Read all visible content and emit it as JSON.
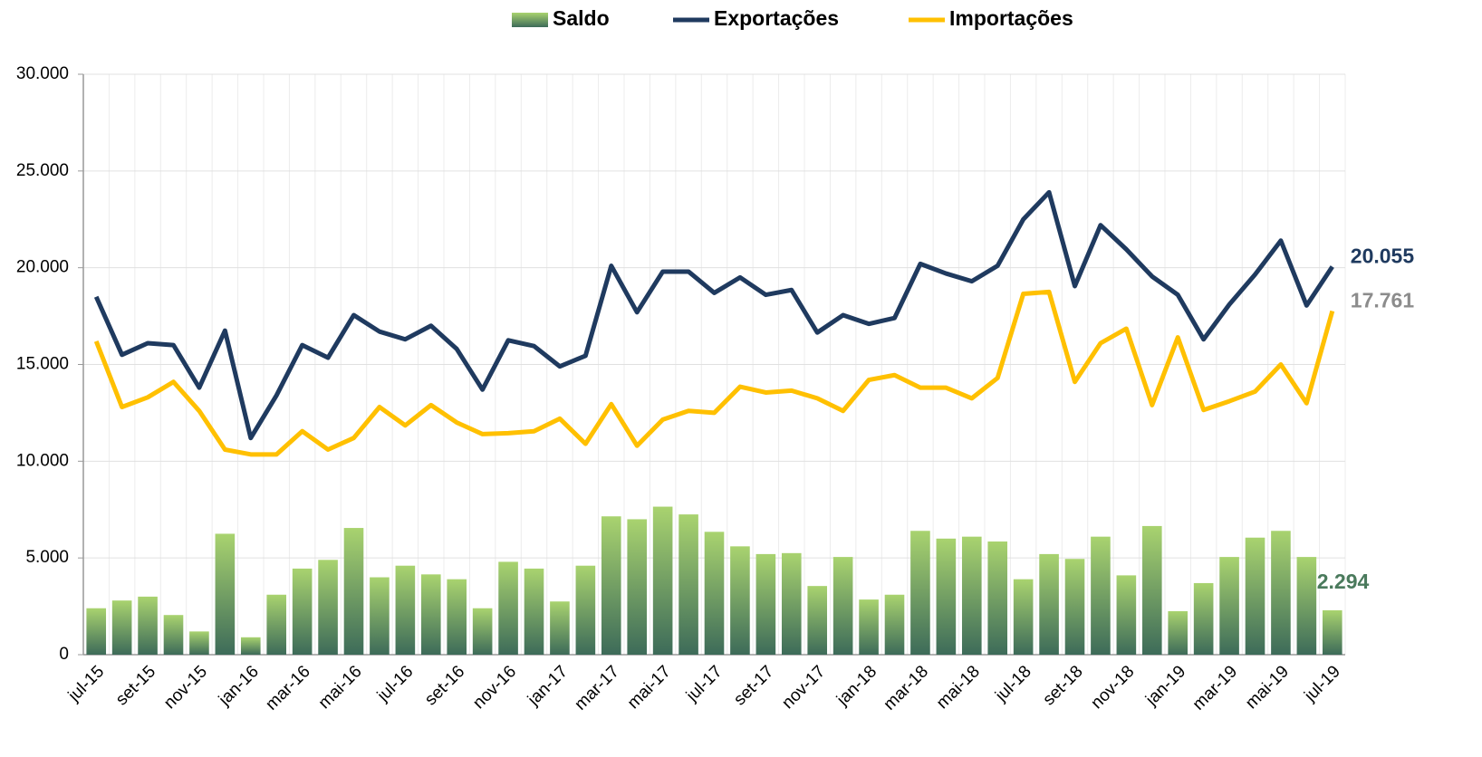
{
  "chart_data": {
    "type": "combo",
    "categories": [
      "jul-15",
      null,
      "set-15",
      null,
      "nov-15",
      null,
      "jan-16",
      null,
      "mar-16",
      null,
      "mai-16",
      null,
      "jul-16",
      null,
      "set-16",
      null,
      "nov-16",
      null,
      "jan-17",
      null,
      "mar-17",
      null,
      "mai-17",
      null,
      "jul-17",
      null,
      "set-17",
      null,
      "nov-17",
      null,
      "jan-18",
      null,
      "mar-18",
      null,
      "mai-18",
      null,
      "jul-18",
      null,
      "set-18",
      null,
      "nov-18",
      null,
      "jan-19",
      null,
      "mar-19",
      null,
      "mai-19",
      null,
      "jul-19"
    ],
    "series": [
      {
        "name": "Saldo",
        "type": "bar",
        "color": "#a9d36f",
        "gradient": [
          "#a9d36f",
          "#3d6b59"
        ],
        "label_color": "#4a7a5c",
        "values": [
          2400,
          2800,
          3000,
          2050,
          1200,
          6250,
          900,
          3100,
          4450,
          4900,
          6550,
          4000,
          4600,
          4150,
          3900,
          2400,
          4800,
          4450,
          2750,
          4600,
          7150,
          7000,
          7650,
          7250,
          6350,
          5600,
          5200,
          5250,
          3550,
          5050,
          2850,
          3100,
          6400,
          6000,
          6100,
          5850,
          3900,
          5200,
          4950,
          6100,
          4100,
          6650,
          2250,
          3700,
          5050,
          6050,
          6400,
          5050,
          2294
        ],
        "value_labels": [
          null,
          null,
          null,
          null,
          null,
          null,
          null,
          null,
          null,
          null,
          null,
          null,
          null,
          null,
          null,
          null,
          null,
          null,
          null,
          null,
          null,
          null,
          null,
          null,
          null,
          null,
          null,
          null,
          null,
          null,
          null,
          null,
          null,
          null,
          null,
          null,
          null,
          null,
          null,
          null,
          null,
          null,
          null,
          null,
          null,
          null,
          null,
          null,
          "2.294"
        ]
      },
      {
        "name": "Exportações",
        "type": "line",
        "color": "#1f3a5f",
        "label_color": "#1f3a5f",
        "values": [
          18500,
          15500,
          16100,
          16000,
          13800,
          16750,
          11200,
          13400,
          16000,
          15350,
          17550,
          16700,
          16300,
          17000,
          15800,
          13700,
          16250,
          15950,
          14900,
          15450,
          20100,
          17700,
          19800,
          19800,
          18700,
          19500,
          18600,
          18850,
          16650,
          17550,
          17100,
          17400,
          20200,
          19700,
          19300,
          20100,
          22500,
          23900,
          19050,
          22200,
          20950,
          19550,
          18600,
          16300,
          18100,
          19650,
          21400,
          18050,
          20055
        ],
        "value_labels": [
          null,
          null,
          null,
          null,
          null,
          null,
          null,
          null,
          null,
          null,
          null,
          null,
          null,
          null,
          null,
          null,
          null,
          null,
          null,
          null,
          null,
          null,
          null,
          null,
          null,
          null,
          null,
          null,
          null,
          null,
          null,
          null,
          null,
          null,
          null,
          null,
          null,
          null,
          null,
          null,
          null,
          null,
          null,
          null,
          null,
          null,
          null,
          null,
          "20.055"
        ]
      },
      {
        "name": "Importações",
        "type": "line",
        "color": "#ffc000",
        "label_color": "#8c8c8c",
        "values": [
          16200,
          12800,
          13300,
          14100,
          12600,
          10600,
          10350,
          10350,
          11550,
          10600,
          11200,
          12800,
          11850,
          12900,
          12000,
          11400,
          11450,
          11550,
          12200,
          10900,
          12950,
          10800,
          12150,
          12600,
          12500,
          13850,
          13550,
          13650,
          13250,
          12600,
          14200,
          14450,
          13800,
          13800,
          13250,
          14300,
          18650,
          18750,
          14100,
          16100,
          16850,
          12900,
          16400,
          12650,
          13100,
          13600,
          15000,
          13000,
          17761
        ],
        "value_labels": [
          null,
          null,
          null,
          null,
          null,
          null,
          null,
          null,
          null,
          null,
          null,
          null,
          null,
          null,
          null,
          null,
          null,
          null,
          null,
          null,
          null,
          null,
          null,
          null,
          null,
          null,
          null,
          null,
          null,
          null,
          null,
          null,
          null,
          null,
          null,
          null,
          null,
          null,
          null,
          null,
          null,
          null,
          null,
          null,
          null,
          null,
          null,
          null,
          "17.761"
        ]
      }
    ],
    "ylim": [
      0,
      30000
    ],
    "yticks": [
      0,
      {
        "value": 5000,
        "label": "5.000"
      },
      {
        "value": 10000,
        "label": "10.000"
      },
      {
        "value": 15000,
        "label": "15.000"
      },
      {
        "value": 20000,
        "label": "20.000"
      },
      {
        "value": 25000,
        "label": "25.000"
      },
      {
        "value": 30000,
        "label": "30.000"
      }
    ],
    "grid": true,
    "legend": "top"
  }
}
